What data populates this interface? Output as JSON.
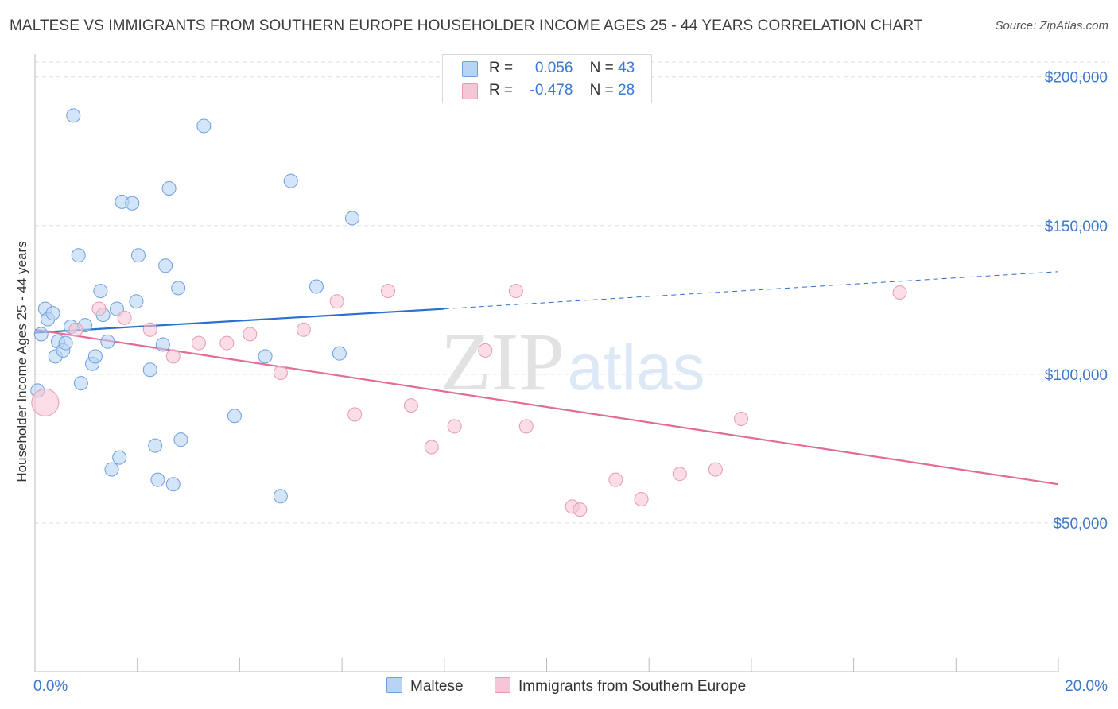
{
  "title": "MALTESE VS IMMIGRANTS FROM SOUTHERN EUROPE HOUSEHOLDER INCOME AGES 25 - 44 YEARS CORRELATION CHART",
  "source": "Source: ZipAtlas.com",
  "watermark": {
    "zip": "ZIP",
    "atlas": "atlas"
  },
  "colors": {
    "maltese_fill": "#b9d3f4",
    "maltese_stroke": "#6d9fe0",
    "maltese_line": "#2b6fd0",
    "immigrants_fill": "#f7c6d6",
    "immigrants_stroke": "#e89ab5",
    "immigrants_line": "#e26b98",
    "axis_label": "#3b78d0",
    "grid": "#dedede"
  },
  "legend": {
    "rows": [
      {
        "r_label": "R =",
        "r_value": "0.056",
        "n_label": "N =",
        "n_value": "43"
      },
      {
        "r_label": "R =",
        "r_value": "-0.478",
        "n_label": "N =",
        "n_value": "28"
      }
    ]
  },
  "bottom_legend": {
    "maltese": "Maltese",
    "immigrants": "Immigrants from Southern Europe"
  },
  "chart_data": {
    "type": "scatter",
    "title": "MALTESE VS IMMIGRANTS FROM SOUTHERN EUROPE HOUSEHOLDER INCOME AGES 25 - 44 YEARS CORRELATION CHART",
    "xlabel": "",
    "ylabel": "Householder Income Ages 25 - 44 years",
    "xlim": [
      0,
      20
    ],
    "ylim": [
      0,
      205000
    ],
    "x_tick_labels": {
      "min": "0.0%",
      "max": "20.0%"
    },
    "y_ticks": [
      50000,
      100000,
      150000,
      200000
    ],
    "y_tick_labels": [
      "$50,000",
      "$100,000",
      "$150,000",
      "$200,000"
    ],
    "series": [
      {
        "name": "Maltese",
        "points": [
          [
            0.05,
            94500
          ],
          [
            0.12,
            113500
          ],
          [
            0.2,
            122000
          ],
          [
            0.25,
            118500
          ],
          [
            0.35,
            120500
          ],
          [
            0.4,
            106000
          ],
          [
            0.45,
            111000
          ],
          [
            0.55,
            108000
          ],
          [
            0.6,
            110500
          ],
          [
            0.7,
            116000
          ],
          [
            0.75,
            187000
          ],
          [
            0.85,
            140000
          ],
          [
            0.9,
            97000
          ],
          [
            0.98,
            116500
          ],
          [
            1.12,
            103500
          ],
          [
            1.18,
            106000
          ],
          [
            1.28,
            128000
          ],
          [
            1.33,
            120000
          ],
          [
            1.42,
            111000
          ],
          [
            1.5,
            68000
          ],
          [
            1.6,
            122000
          ],
          [
            1.65,
            72000
          ],
          [
            1.7,
            158000
          ],
          [
            1.9,
            157500
          ],
          [
            1.98,
            124500
          ],
          [
            2.02,
            140000
          ],
          [
            2.25,
            101500
          ],
          [
            2.35,
            76000
          ],
          [
            2.4,
            64500
          ],
          [
            2.5,
            110000
          ],
          [
            2.55,
            136500
          ],
          [
            2.62,
            162500
          ],
          [
            2.7,
            63000
          ],
          [
            2.8,
            129000
          ],
          [
            2.85,
            78000
          ],
          [
            3.3,
            183500
          ],
          [
            3.9,
            86000
          ],
          [
            4.5,
            106000
          ],
          [
            4.8,
            59000
          ],
          [
            5.0,
            165000
          ],
          [
            5.5,
            129500
          ],
          [
            5.95,
            107000
          ],
          [
            6.2,
            152500
          ]
        ],
        "trend": {
          "x": [
            0,
            8
          ],
          "y": [
            114000,
            122000
          ],
          "dashed_to": [
            20,
            134500
          ]
        }
      },
      {
        "name": "Immigrants from Southern Europe",
        "points": [
          [
            0.2,
            90500
          ],
          [
            0.8,
            115000
          ],
          [
            1.25,
            122000
          ],
          [
            1.75,
            119000
          ],
          [
            2.25,
            115000
          ],
          [
            2.7,
            106000
          ],
          [
            3.2,
            110500
          ],
          [
            3.75,
            110500
          ],
          [
            4.2,
            113500
          ],
          [
            4.8,
            100500
          ],
          [
            5.25,
            115000
          ],
          [
            5.9,
            124500
          ],
          [
            6.25,
            86500
          ],
          [
            6.9,
            128000
          ],
          [
            7.35,
            89500
          ],
          [
            7.75,
            75500
          ],
          [
            8.2,
            82500
          ],
          [
            8.8,
            108000
          ],
          [
            9.4,
            128000
          ],
          [
            9.6,
            82500
          ],
          [
            10.5,
            55500
          ],
          [
            10.65,
            54500
          ],
          [
            11.35,
            64500
          ],
          [
            11.85,
            58000
          ],
          [
            12.6,
            66500
          ],
          [
            13.3,
            68000
          ],
          [
            13.8,
            85000
          ],
          [
            16.9,
            127500
          ]
        ],
        "trend": {
          "x": [
            0,
            20
          ],
          "y": [
            115000,
            63000
          ]
        }
      }
    ]
  }
}
